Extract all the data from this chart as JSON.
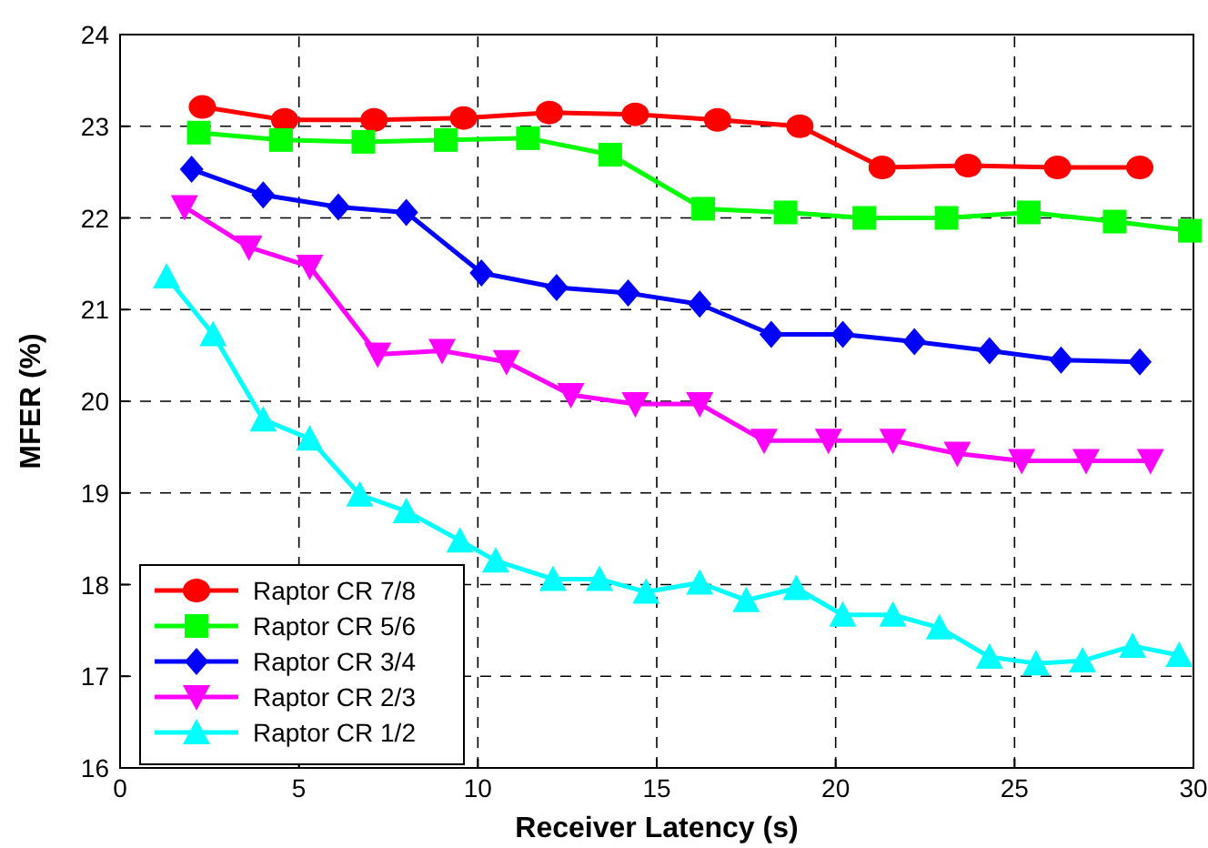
{
  "chart_data": {
    "type": "line",
    "xlabel": "Receiver Latency (s)",
    "ylabel": "MFER (%)",
    "xlim": [
      0,
      30
    ],
    "xticks": [
      0,
      5,
      10,
      15,
      20,
      25,
      30
    ],
    "ylim": [
      16,
      24
    ],
    "yticks": [
      16,
      17,
      18,
      19,
      20,
      21,
      22,
      23,
      24
    ],
    "grid": true,
    "legend": "bottom left",
    "series": [
      {
        "name": "Raptor CR 7/8",
        "color": "#ff0000",
        "marker": "circle",
        "x": [
          2.3,
          4.6,
          7.1,
          9.6,
          12.0,
          14.4,
          16.7,
          19.0,
          21.3,
          23.7,
          26.2,
          28.5
        ],
        "values": [
          23.21,
          23.07,
          23.07,
          23.09,
          23.15,
          23.13,
          23.07,
          23.0,
          22.55,
          22.57,
          22.55,
          22.55
        ]
      },
      {
        "name": "Raptor CR 5/6",
        "color": "#00ff00",
        "marker": "square",
        "x": [
          2.2,
          4.5,
          6.8,
          9.1,
          11.4,
          13.7,
          16.3,
          18.6,
          20.8,
          23.1,
          25.4,
          27.8,
          29.9
        ],
        "values": [
          22.93,
          22.85,
          22.83,
          22.85,
          22.87,
          22.69,
          22.1,
          22.06,
          22.0,
          22.0,
          22.06,
          21.96,
          21.86
        ]
      },
      {
        "name": "Raptor CR 3/4",
        "color": "#0000ff",
        "marker": "diamond",
        "x": [
          2.0,
          4.0,
          6.1,
          8.0,
          10.1,
          12.2,
          14.2,
          16.2,
          18.2,
          20.2,
          22.2,
          24.3,
          26.3,
          28.5
        ],
        "values": [
          22.53,
          22.25,
          22.12,
          22.06,
          21.4,
          21.24,
          21.18,
          21.06,
          20.73,
          20.73,
          20.65,
          20.55,
          20.45,
          20.43
        ]
      },
      {
        "name": "Raptor CR 2/3",
        "color": "#ff00ff",
        "marker": "triangle-down",
        "x": [
          1.8,
          3.6,
          5.3,
          7.2,
          9.0,
          10.8,
          12.6,
          14.4,
          16.2,
          18.0,
          19.8,
          21.6,
          23.4,
          25.2,
          27.0,
          28.8
        ],
        "values": [
          22.12,
          21.68,
          21.47,
          20.51,
          20.55,
          20.43,
          20.07,
          19.97,
          19.97,
          19.57,
          19.57,
          19.57,
          19.43,
          19.35,
          19.35,
          19.35
        ]
      },
      {
        "name": "Raptor CR 1/2",
        "color": "#00ffff",
        "marker": "triangle",
        "x": [
          1.3,
          2.6,
          4.0,
          5.3,
          6.7,
          8.0,
          9.5,
          10.5,
          12.1,
          13.4,
          14.7,
          16.2,
          17.5,
          18.9,
          20.2,
          21.6,
          22.9,
          24.3,
          25.6,
          26.9,
          28.3,
          29.6
        ],
        "values": [
          21.36,
          20.73,
          19.8,
          19.59,
          18.98,
          18.8,
          18.48,
          18.26,
          18.06,
          18.06,
          17.92,
          18.02,
          17.83,
          17.96,
          17.67,
          17.67,
          17.53,
          17.21,
          17.14,
          17.17,
          17.33,
          17.23
        ]
      }
    ]
  }
}
